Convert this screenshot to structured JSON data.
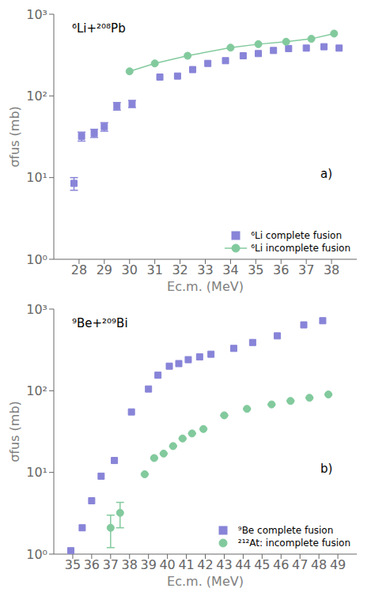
{
  "chart_data": [
    {
      "type": "scatter",
      "title": "⁶Li+²⁰⁸Pb",
      "annotations": [
        "a)"
      ],
      "xlabel": "Ec.m. (MeV)",
      "ylabel": "σfus (mb)",
      "log": "y",
      "grid": false,
      "legend": "lower right",
      "xlim": [
        27,
        39
      ],
      "ylim": [
        1,
        1000
      ],
      "xticks": [
        28,
        29,
        30,
        31,
        32,
        33,
        34,
        35,
        36,
        37,
        38
      ],
      "yticks": [
        {
          "value": 1,
          "label": "10⁰"
        },
        {
          "value": 10,
          "label": "10¹"
        },
        {
          "value": 100,
          "label": "10²"
        },
        {
          "value": 1000,
          "label": "10³"
        }
      ],
      "series": [
        {
          "name": "⁶Li complete fusion",
          "type": "scatter",
          "marker": "square",
          "color": "#8884d8",
          "x": [
            27.8,
            28.1,
            28.6,
            29.0,
            29.5,
            30.1,
            31.2,
            31.9,
            32.5,
            33.1,
            33.8,
            34.5,
            35.1,
            35.7,
            36.3,
            37.0,
            37.7,
            38.3
          ],
          "values": [
            8.5,
            32,
            35,
            42,
            75,
            80,
            170,
            175,
            210,
            250,
            270,
            310,
            330,
            360,
            380,
            385,
            400,
            385
          ],
          "yerr": [
            1.5,
            4,
            4,
            5,
            8,
            8,
            0,
            0,
            0,
            0,
            0,
            0,
            0,
            0,
            0,
            0,
            0,
            0
          ]
        },
        {
          "name": "⁶Li incomplete fusion",
          "type": "line",
          "marker": "circle",
          "line_style": "solid",
          "color": "#82ca9d",
          "x": [
            30.0,
            31.0,
            32.3,
            34.0,
            35.1,
            36.2,
            37.2,
            38.1
          ],
          "values": [
            200,
            250,
            310,
            390,
            430,
            460,
            500,
            580
          ]
        }
      ]
    },
    {
      "type": "scatter",
      "title": "⁹Be+²⁰⁹Bi",
      "annotations": [
        "b)"
      ],
      "xlabel": "Ec.m. (MeV)",
      "ylabel": "σfus (mb)",
      "log": "y",
      "grid": false,
      "legend": "lower right",
      "xlim": [
        34,
        50
      ],
      "ylim": [
        1,
        1000
      ],
      "xticks": [
        35,
        36,
        37,
        38,
        39,
        40,
        41,
        42,
        43,
        44,
        45,
        46,
        47,
        48,
        49
      ],
      "yticks": [
        {
          "value": 1,
          "label": "10⁰"
        },
        {
          "value": 10,
          "label": "10¹"
        },
        {
          "value": 100,
          "label": "10²"
        },
        {
          "value": 1000,
          "label": "10³"
        }
      ],
      "series": [
        {
          "name": "⁹Be complete fusion",
          "type": "scatter",
          "marker": "square",
          "color": "#8884d8",
          "x": [
            34.9,
            35.5,
            36.0,
            36.5,
            37.2,
            38.1,
            39.0,
            39.5,
            40.1,
            40.6,
            41.1,
            41.7,
            42.3,
            43.5,
            44.5,
            45.8,
            47.2,
            48.2
          ],
          "values": [
            1.1,
            2.1,
            4.5,
            9.0,
            14,
            55,
            105,
            155,
            200,
            215,
            240,
            260,
            280,
            330,
            390,
            470,
            640,
            720
          ]
        },
        {
          "name": "²¹²At: incomplete fusion",
          "type": "scatter",
          "marker": "circle",
          "color": "#82ca9d",
          "x": [
            37.0,
            37.5,
            38.8,
            39.3,
            39.8,
            40.3,
            40.8,
            41.3,
            41.9,
            43.0,
            44.2,
            45.5,
            46.5,
            47.5,
            48.5
          ],
          "values": [
            2.1,
            3.2,
            9.5,
            15,
            17,
            21,
            26,
            30,
            34,
            50,
            60,
            68,
            75,
            82,
            90
          ],
          "yerr_lo": [
            0.9,
            1.1,
            0,
            0,
            0,
            0,
            0,
            0,
            0,
            0,
            0,
            0,
            0,
            0,
            0
          ],
          "yerr_hi": [
            0.9,
            1.1,
            0,
            0,
            0,
            0,
            0,
            0,
            0,
            0,
            0,
            0,
            0,
            0,
            0
          ]
        }
      ]
    }
  ]
}
